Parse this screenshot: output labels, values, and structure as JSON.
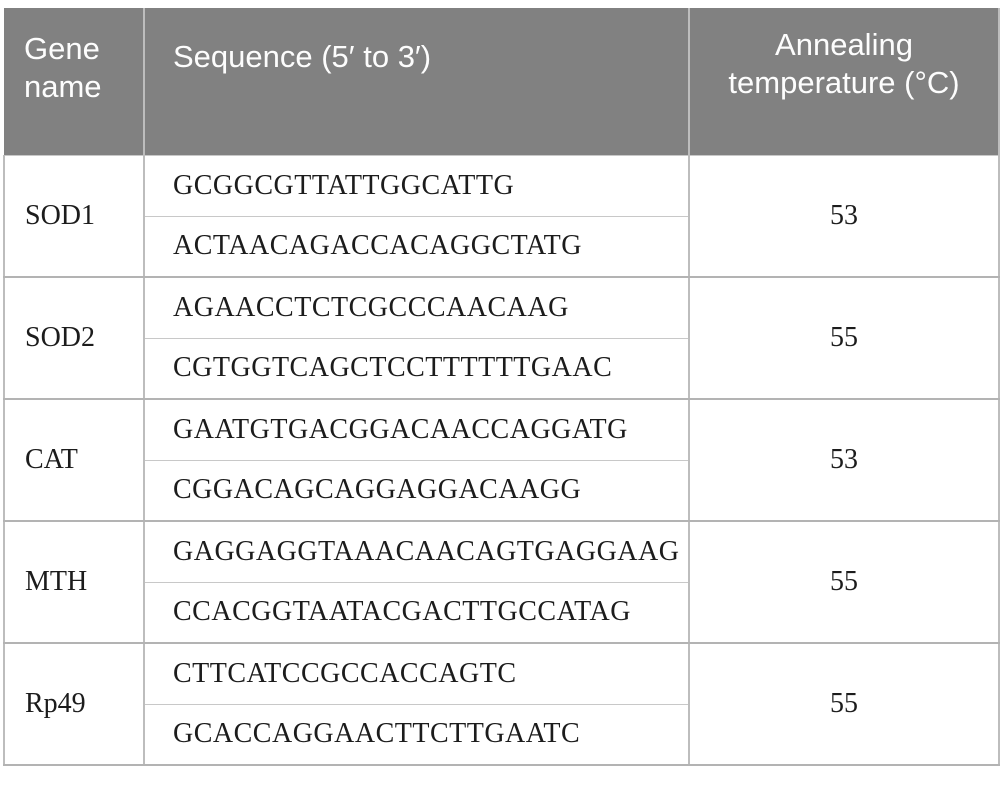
{
  "figure": {
    "kind": "primer-table"
  },
  "table": {
    "headers": [
      {
        "id": "gene",
        "label": "Gene name"
      },
      {
        "id": "sequence",
        "label": "Sequence (5′ to 3′)"
      },
      {
        "id": "annealing",
        "label": "Annealing temperature (°C)"
      }
    ],
    "rows": [
      {
        "gene": "SOD1",
        "forward": "GCGGCGTTATTGGCATTG",
        "reverse": "ACTAACAGACCACAGGCTATG",
        "temp": "53"
      },
      {
        "gene": "SOD2",
        "forward": "AGAACCTCTCGCCCAACAAG",
        "reverse": "CGTGGTCAGCTCCTTTTTTGAAC",
        "temp": "55"
      },
      {
        "gene": "CAT",
        "forward": "GAATGTGACGGACAACCAGGATG",
        "reverse": "CGGACAGCAGGAGGACAAGG",
        "temp": "53"
      },
      {
        "gene": "MTH",
        "forward": "GAGGAGGTAAACAACAGTGAGGAAG",
        "reverse": "CCACGGTAATACGACTTGCCATAG",
        "temp": "55"
      },
      {
        "gene": "Rp49",
        "forward": "CTTCATCCGCCACCAGTC",
        "reverse": "GCACCAGGAACTTCTTGAATC",
        "temp": "55"
      }
    ]
  },
  "colors": {
    "header-bg": "#818181",
    "header-text": "#fdfdfd",
    "body-text": "#1c1c1c",
    "grid": "#c8c8c8",
    "v-grid": "#bdbdbd",
    "group-grid": "#b3b3b3",
    "page-bg": "#ffffff"
  }
}
